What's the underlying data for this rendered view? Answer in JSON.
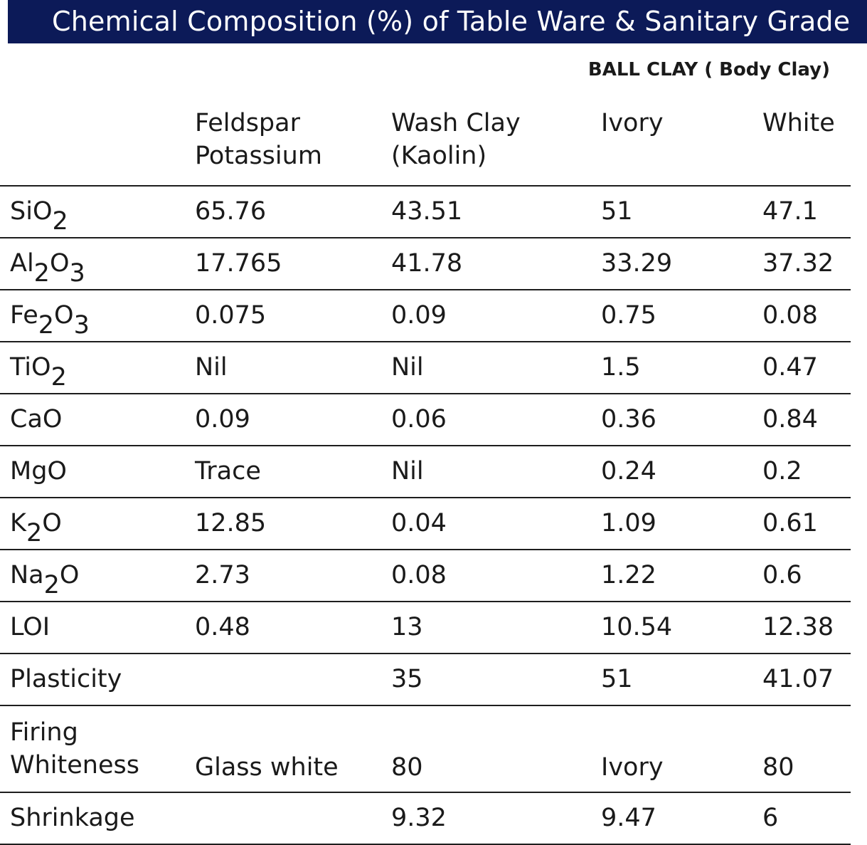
{
  "title": "Chemical Composition (%) of Table Ware & Sanitary Grade",
  "subtitle": "BALL CLAY ( Body Clay)",
  "columns": [
    {
      "line1": "",
      "line2": ""
    },
    {
      "line1": "Feldspar",
      "line2": "Potassium"
    },
    {
      "line1": "Wash Clay",
      "line2": "(Kaolin)"
    },
    {
      "line1": "Ivory",
      "line2": ""
    },
    {
      "line1": "White",
      "line2": ""
    }
  ],
  "rows": [
    {
      "label": {
        "parts": [
          {
            "t": "SiO"
          },
          {
            "s": "2"
          }
        ]
      },
      "values": [
        "65.76",
        "43.51",
        "51",
        "47.1"
      ]
    },
    {
      "label": {
        "parts": [
          {
            "t": "Al"
          },
          {
            "s": "2"
          },
          {
            "t": "O"
          },
          {
            "s": "3"
          }
        ]
      },
      "values": [
        "17.765",
        "41.78",
        "33.29",
        "37.32"
      ]
    },
    {
      "label": {
        "parts": [
          {
            "t": "Fe"
          },
          {
            "s": "2"
          },
          {
            "t": "O"
          },
          {
            "s": "3"
          }
        ]
      },
      "values": [
        "0.075",
        "0.09",
        "0.75",
        "0.08"
      ]
    },
    {
      "label": {
        "parts": [
          {
            "t": "TiO"
          },
          {
            "s": "2"
          }
        ]
      },
      "values": [
        "Nil",
        "Nil",
        "1.5",
        "0.47"
      ]
    },
    {
      "label": {
        "parts": [
          {
            "t": "CaO"
          }
        ]
      },
      "values": [
        "0.09",
        "0.06",
        "0.36",
        "0.84"
      ]
    },
    {
      "label": {
        "parts": [
          {
            "t": "MgO"
          }
        ]
      },
      "values": [
        "Trace",
        "Nil",
        "0.24",
        "0.2"
      ]
    },
    {
      "label": {
        "parts": [
          {
            "t": "K"
          },
          {
            "s": "2"
          },
          {
            "t": "O"
          }
        ]
      },
      "values": [
        "12.85",
        "0.04",
        "1.09",
        "0.61"
      ]
    },
    {
      "label": {
        "parts": [
          {
            "t": "Na"
          },
          {
            "s": "2"
          },
          {
            "t": "O"
          }
        ]
      },
      "values": [
        "2.73",
        "0.08",
        "1.22",
        "0.6"
      ]
    },
    {
      "label": {
        "parts": [
          {
            "t": "LOI"
          }
        ]
      },
      "values": [
        "0.48",
        "13",
        "10.54",
        "12.38"
      ]
    },
    {
      "label": {
        "parts": [
          {
            "t": "Plasticity"
          }
        ]
      },
      "values": [
        "",
        "35",
        "51",
        "41.07"
      ]
    },
    {
      "label": {
        "line1": "Firing",
        "line2": "Whiteness"
      },
      "values": [
        "Glass white",
        "80",
        "Ivory",
        "80"
      ]
    },
    {
      "label": {
        "parts": [
          {
            "t": "Shrinkage"
          }
        ]
      },
      "values": [
        "",
        "9.32",
        "9.47",
        "6"
      ]
    }
  ]
}
